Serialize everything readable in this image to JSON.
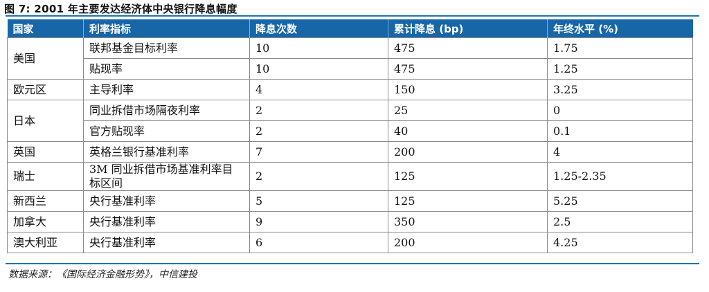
{
  "title": "图 7: 2001 年主要发达经济体中央银行降息幅度",
  "table": {
    "headers": [
      "国家",
      "利率指标",
      "降息次数",
      "累计降息 (bp)",
      "年终水平 (%)"
    ],
    "rows": [
      {
        "country": "美国",
        "indicator": "联邦基金目标利率",
        "cuts": "10",
        "total": "475",
        "level": "1.75"
      },
      {
        "indicator": "贴现率",
        "cuts": "10",
        "total": "475",
        "level": "1.25"
      },
      {
        "country": "欧元区",
        "indicator": "主导利率",
        "cuts": "4",
        "total": "150",
        "level": "3.25"
      },
      {
        "country": "日本",
        "indicator": "同业拆借市场隔夜利率",
        "cuts": "2",
        "total": "25",
        "level": "0"
      },
      {
        "indicator": "官方贴现率",
        "cuts": "2",
        "total": "40",
        "level": "0.1"
      },
      {
        "country": "英国",
        "indicator": "英格兰银行基准利率",
        "cuts": "7",
        "total": "200",
        "level": "4"
      },
      {
        "country": "瑞士",
        "indicator": "3M 同业拆借市场基准利率目标区间",
        "cuts": "2",
        "total": "125",
        "level": "1.25-2.35"
      },
      {
        "country": "新西兰",
        "indicator": "央行基准利率",
        "cuts": "5",
        "total": "125",
        "level": "5.25"
      },
      {
        "country": "加拿大",
        "indicator": "央行基准利率",
        "cuts": "9",
        "total": "350",
        "level": "2.5"
      },
      {
        "country": "澳大利亚",
        "indicator": "央行基准利率",
        "cuts": "6",
        "total": "200",
        "level": "4.25"
      }
    ]
  },
  "source": "数据来源：《国际经济金融形势》，中信建投",
  "colors": {
    "header_bg": "#1666a8",
    "rule": "#1a73b5"
  }
}
